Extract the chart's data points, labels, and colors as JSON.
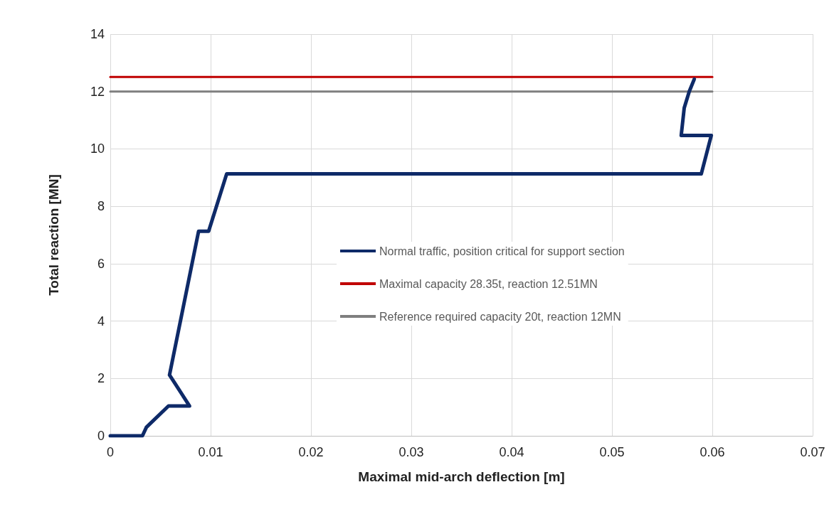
{
  "chart_data": {
    "type": "line",
    "xlabel": "Maximal mid-arch deflection [m]",
    "ylabel": "Total reaction [MN]",
    "xlim": [
      0,
      0.07
    ],
    "xticks": [
      0,
      0.01,
      0.02,
      0.03,
      0.04,
      0.05,
      0.06,
      0.07
    ],
    "ylim": [
      0,
      14
    ],
    "yticks": [
      0,
      2,
      4,
      6,
      8,
      10,
      12,
      14
    ],
    "grid": true,
    "legend": "right",
    "marker": "none",
    "line_style": "solid",
    "series": [
      {
        "name": "Normal traffic, position critical for support section",
        "color": "#0e2a68",
        "x": [
          0,
          0.0032,
          0.0036,
          0.0058,
          0.0079,
          0.0059,
          0.0088,
          0.0098,
          0.0116,
          0.0589,
          0.0599,
          0.0569,
          0.0572,
          0.0577,
          0.0582
        ],
        "values": [
          0,
          0,
          0.3,
          1.04,
          1.04,
          2.12,
          7.13,
          7.13,
          9.13,
          9.13,
          10.47,
          10.47,
          11.43,
          12.0,
          12.43
        ]
      },
      {
        "name": "Maximal capacity 28.35t, reaction 12.51MN",
        "color": "#c00000",
        "x": [
          0,
          0.06
        ],
        "values": [
          12.51,
          12.51
        ]
      },
      {
        "name": "Reference required capacity 20t, reaction 12MN",
        "color": "#7f7f7f",
        "x": [
          0,
          0.06
        ],
        "values": [
          12,
          12
        ]
      }
    ]
  }
}
